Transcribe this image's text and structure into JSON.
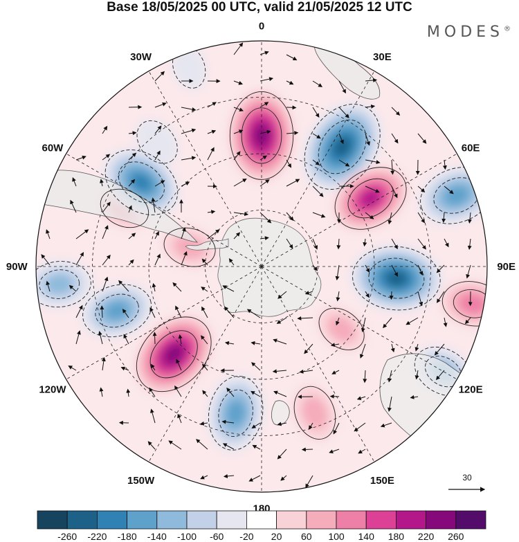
{
  "title": "Base 18/05/2025 00 UTC, valid 21/05/2025 12 UTC",
  "brand": "MODES",
  "brand_mark": "®",
  "longitude_labels": [
    "0",
    "30E",
    "60E",
    "90E",
    "120E",
    "150E",
    "180",
    "150W",
    "120W",
    "90W",
    "60W",
    "30W"
  ],
  "vector_scale_label": "30",
  "colorbar": {
    "ticks": [
      "-260",
      "-220",
      "-180",
      "-140",
      "-100",
      "-60",
      "-20",
      "20",
      "60",
      "100",
      "140",
      "180",
      "220",
      "260"
    ],
    "colors": [
      "#16435e",
      "#1d6189",
      "#2f82b3",
      "#5ea1cb",
      "#8fbadb",
      "#c3d1e8",
      "#e6e6f0",
      "#ffffff",
      "#f9d2d7",
      "#f5acbb",
      "#ee7fa6",
      "#dc4196",
      "#b3178a",
      "#86097c",
      "#540c6b"
    ]
  },
  "anomalies": [
    {
      "lon": 0,
      "r": 0.58,
      "value": 240
    },
    {
      "lon": 34,
      "r": 0.64,
      "value": -260
    },
    {
      "lon": 58,
      "r": 0.57,
      "value": 190
    },
    {
      "lon": 70,
      "r": 0.92,
      "value": -180
    },
    {
      "lon": 95,
      "r": 0.6,
      "value": -240
    },
    {
      "lon": 100,
      "r": 0.95,
      "value": 120
    },
    {
      "lon": 128,
      "r": 0.45,
      "value": 70
    },
    {
      "lon": 120,
      "r": 0.93,
      "value": -120
    },
    {
      "lon": 160,
      "r": 0.69,
      "value": 90
    },
    {
      "lon": 190,
      "r": 0.66,
      "value": -180
    },
    {
      "lon": 225,
      "r": 0.55,
      "value": 230
    },
    {
      "lon": 253,
      "r": 0.67,
      "value": -160
    },
    {
      "lon": 265,
      "r": 0.9,
      "value": -130
    },
    {
      "lon": 285,
      "r": 0.33,
      "value": 80
    },
    {
      "lon": 293,
      "r": 0.66,
      "value": 70
    },
    {
      "lon": 305,
      "r": 0.65,
      "value": -200
    },
    {
      "lon": 320,
      "r": 0.72,
      "value": -60
    },
    {
      "lon": 340,
      "r": 0.94,
      "value": -40
    }
  ]
}
